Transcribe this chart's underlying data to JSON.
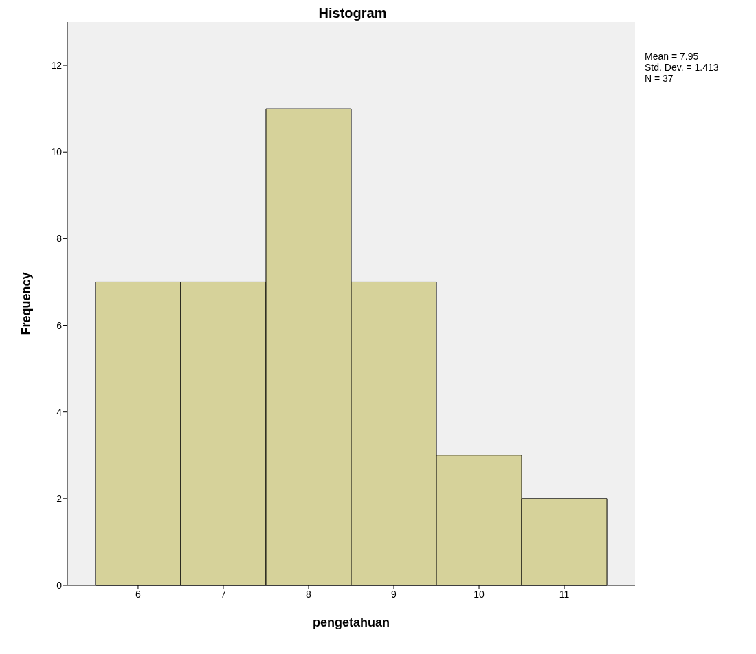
{
  "chart_data": {
    "type": "histogram",
    "title": "Histogram",
    "xlabel": "pengetahuan",
    "ylabel": "Frequency",
    "bins": [
      5.5,
      6.5,
      7.5,
      8.5,
      9.5,
      10.5,
      11.5
    ],
    "values": [
      7,
      7,
      11,
      7,
      3,
      2
    ],
    "color": "#d6d29a",
    "xlim": [
      5.17,
      11.83
    ],
    "xticks": [
      6,
      7,
      8,
      9,
      10,
      11
    ],
    "ylim": [
      0,
      13
    ],
    "yticks": [
      0,
      2,
      4,
      6,
      8,
      10,
      12
    ],
    "annotations": [
      "Mean = 7.95",
      "Std. Dev. = 1.413",
      "N = 37"
    ]
  }
}
